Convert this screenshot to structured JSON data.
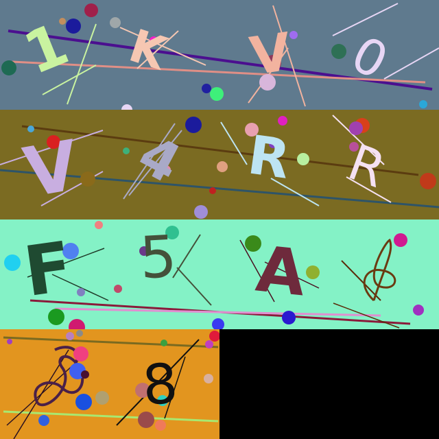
{
  "captcha_rows": [
    {
      "name": "row-1",
      "background": "#5f7a8e",
      "glyphs": [
        {
          "text": "1",
          "color": "#c9f3a0"
        },
        {
          "text": "K",
          "color": "#f6c7b2"
        },
        {
          "text": "V",
          "color": "#f2b39f"
        },
        {
          "text": "0",
          "color": "#e7d6f5"
        }
      ]
    },
    {
      "name": "row-2",
      "background": "#7b6b22",
      "glyphs": [
        {
          "text": "V",
          "color": "#c8aee0"
        },
        {
          "text": "4",
          "color": "#a9a9c7"
        },
        {
          "text": "R",
          "color": "#bde4f2"
        },
        {
          "text": "R",
          "color": "#f5e1f2"
        }
      ]
    },
    {
      "name": "row-3",
      "background": "#84f2c6",
      "glyphs": [
        {
          "text": "F",
          "color": "#1f4a31"
        },
        {
          "text": "5",
          "color": "#44513a"
        },
        {
          "text": "A",
          "color": "#6e2a3c"
        },
        {
          "text": "8",
          "color": "#6a3b12"
        }
      ]
    },
    {
      "name": "row-4",
      "background": "#e2951f",
      "glyphs": [
        {
          "text": "8",
          "color": "#4a2048"
        },
        {
          "text": "8",
          "color": "#111111"
        }
      ]
    }
  ]
}
